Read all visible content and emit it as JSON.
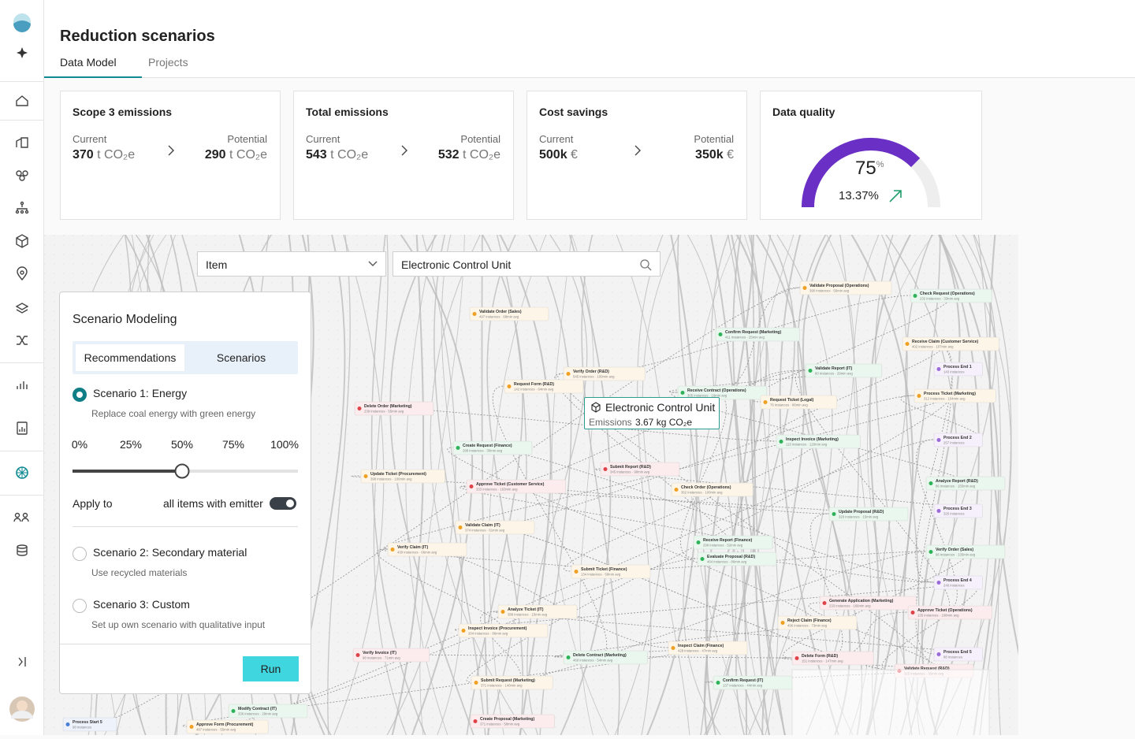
{
  "header": {
    "title": "Reduction scenarios",
    "tabs": [
      "Data Model",
      "Projects"
    ]
  },
  "cards": [
    {
      "title": "Scope 3 emissions",
      "current_label": "Current",
      "current_value": "370",
      "current_unit": "t CO₂e",
      "potential_label": "Potential",
      "potential_value": "290",
      "potential_unit": "t CO₂e"
    },
    {
      "title": "Total emissions",
      "current_label": "Current",
      "current_value": "543",
      "current_unit": "t CO₂e",
      "potential_label": "Potential",
      "potential_value": "532",
      "potential_unit": "t CO₂e"
    },
    {
      "title": "Cost savings",
      "current_label": "Current",
      "current_value": "500k",
      "current_unit": "€",
      "potential_label": "Potential",
      "potential_value": "350k",
      "potential_unit": "€"
    }
  ],
  "quality": {
    "title": "Data quality",
    "value": 75,
    "max": 100,
    "unit": "%",
    "change": "13.37%",
    "color": "#6a2fc4",
    "track_color": "#eeeeee",
    "trend_color": "#1f9d6b"
  },
  "filters": {
    "type": "Item",
    "search": "Electronic Control Unit"
  },
  "scenario_panel": {
    "title": "Scenario Modeling",
    "toggle": [
      "Recommendations",
      "Scenarios"
    ],
    "scenarios": [
      {
        "name": "Scenario 1: Energy",
        "description": "Replace coal energy with green energy",
        "selected": true
      },
      {
        "name": "Scenario 2: Secondary material",
        "description": "Use recycled materials",
        "selected": false
      },
      {
        "name": "Scenario 3: Custom",
        "description": "Set up own scenario with qualitative input",
        "selected": false
      }
    ],
    "slider": {
      "value": 50,
      "lim": [
        0,
        100
      ],
      "ticks": [
        {
          "value": 0,
          "label": "0%"
        },
        {
          "value": 25,
          "label": "25%"
        },
        {
          "value": 50,
          "label": "50%"
        },
        {
          "value": 75,
          "label": "75%"
        },
        {
          "value": 100,
          "label": "100%"
        }
      ]
    },
    "apply_label": "Apply to",
    "apply_value": "all items with emitter",
    "apply_on": true,
    "run": "Run"
  },
  "tooltip": {
    "title": "Electronic Control Unit",
    "label": "Emissions",
    "value": "3.67 kg CO₂e"
  },
  "nodes": [
    {
      "label": "Validate Order (Sales)",
      "sub": "497 instances · 68min avg",
      "color": "#f0a020"
    },
    {
      "label": "Validate Proposal (Operations)",
      "sub": "390 instances · 56min avg",
      "color": "#f0a020"
    },
    {
      "label": "Check Request (Operations)",
      "sub": "232 instances · 33min avg",
      "color": "#2fb35a"
    },
    {
      "label": "Confirm Request (Marketing)",
      "sub": "411 instances · 25min avg",
      "color": "#2fb35a"
    },
    {
      "label": "Receive Claim (Customer Service)",
      "sub": "402 instances · 107min avg",
      "color": "#f0a020"
    },
    {
      "label": "Validate Report (IT)",
      "sub": "80 instances · 29min avg",
      "color": "#2fb35a"
    },
    {
      "label": "Process End 1",
      "sub": "143 instances",
      "color": "#9a6ad8"
    },
    {
      "label": "Verify Order (R&D)",
      "sub": "545 instances · 100min avg",
      "color": "#f0a020"
    },
    {
      "label": "Request Form (R&D)",
      "sub": "142 instances · 64min avg",
      "color": "#f0a020"
    },
    {
      "label": "Receive Contract (Operations)",
      "sub": "305 instances · 16min avg",
      "color": "#2fb35a"
    },
    {
      "label": "Request Ticket (Legal)",
      "sub": "76 instances · 86min avg",
      "color": "#f0a020"
    },
    {
      "label": "Process Ticket (Marketing)",
      "sub": "312 instances · 104min avg",
      "color": "#f0a020"
    },
    {
      "label": "Delete Order (Marketing)",
      "sub": "239 instances · 55min avg",
      "color": "#e0424a"
    },
    {
      "label": "Process End 2",
      "sub": "257 instances",
      "color": "#9a6ad8"
    },
    {
      "label": "Inspect Invoice (Marketing)",
      "sub": "115 instances · 120min avg",
      "color": "#2fb35a"
    },
    {
      "label": "Create Request (Finance)",
      "sub": "298 instances · 30min avg",
      "color": "#2fb35a"
    },
    {
      "label": "Update Ticket (Procurement)",
      "sub": "398 instances · 100min avg",
      "color": "#f0a020"
    },
    {
      "label": "Submit Report (R&D)",
      "sub": "345 instances · 98min avg",
      "color": "#e0424a"
    },
    {
      "label": "Approve Ticket (Customer Service)",
      "sub": "333 instances · 163min avg",
      "color": "#e0424a"
    },
    {
      "label": "Check Order (Operations)",
      "sub": "362 instances · 100min avg",
      "color": "#f0a020"
    },
    {
      "label": "Analyze Report (R&D)",
      "sub": "86 instances · 155min avg",
      "color": "#2fb35a"
    },
    {
      "label": "Update Proposal (R&D)",
      "sub": "320 instances · 15min avg",
      "color": "#2fb35a"
    },
    {
      "label": "Process End 3",
      "sub": "325 instances",
      "color": "#9a6ad8"
    },
    {
      "label": "Validate Claim (IT)",
      "sub": "374 instances · 61min avg",
      "color": "#f0a020"
    },
    {
      "label": "Receive Report (Finance)",
      "sub": "299 instances · 52min avg",
      "color": "#2fb35a"
    },
    {
      "label": "Verify Claim (IT)",
      "sub": "430 instances · 66min avg",
      "color": "#f0a020"
    },
    {
      "label": "Evaluate Proposal (R&D)",
      "sub": "464 instances · 86min avg",
      "color": "#2fb35a"
    },
    {
      "label": "Verify Order (Sales)",
      "sub": "96 instances · 135min avg",
      "color": "#2fb35a"
    },
    {
      "label": "Submit Ticket (Finance)",
      "sub": "134 instances · 58min avg",
      "color": "#f0a020"
    },
    {
      "label": "Process End 4",
      "sub": "246 instances",
      "color": "#9a6ad8"
    },
    {
      "label": "Analyze Ticket (IT)",
      "sub": "388 instances · 15min avg",
      "color": "#f0a020"
    },
    {
      "label": "Generate Application (Marketing)",
      "sub": "233 instances · 166min avg",
      "color": "#e0424a"
    },
    {
      "label": "Approve Ticket (Operations)",
      "sub": "135 instances · 168min avg",
      "color": "#e0424a"
    },
    {
      "label": "Reject Claim (Finance)",
      "sub": "496 instances · 73min avg",
      "color": "#f0a020"
    },
    {
      "label": "Inspect Invoice (Procurement)",
      "sub": "204 instances · 86min avg",
      "color": "#f0a020"
    },
    {
      "label": "Inspect Claim (Finance)",
      "sub": "428 instances · 47min avg",
      "color": "#f0a020"
    },
    {
      "label": "Delete Contract (Marketing)",
      "sub": "469 instances · 54min avg",
      "color": "#2fb35a"
    },
    {
      "label": "Verify Invoice (IT)",
      "sub": "98 instances · 71min avg",
      "color": "#e0424a"
    },
    {
      "label": "Delete Form (R&D)",
      "sub": "151 instances · 147min avg",
      "color": "#e0424a"
    },
    {
      "label": "Process End 5",
      "sub": "88 instances",
      "color": "#9a6ad8"
    },
    {
      "label": "Validate Request (R&D)",
      "sub": "325 instances · 35min avg",
      "color": "#e0424a"
    },
    {
      "label": "Submit Request (Marketing)",
      "sub": "371 instances · 140min avg",
      "color": "#f0a020"
    },
    {
      "label": "Confirm Request (IT)",
      "sub": "137 instances · 44min avg",
      "color": "#2fb35a"
    },
    {
      "label": "Create Proposal (Marketing)",
      "sub": "371 instances · 58min avg",
      "color": "#e0424a"
    },
    {
      "label": "Modify Contract (IT)",
      "sub": "336 instances · 29min avg",
      "color": "#2fb35a"
    },
    {
      "label": "Approve Form (Procurement)",
      "sub": "487 instances · 55min avg",
      "color": "#f0a020"
    },
    {
      "label": "Process Start 5",
      "sub": "98 instances",
      "color": "#4a7fd8"
    }
  ]
}
